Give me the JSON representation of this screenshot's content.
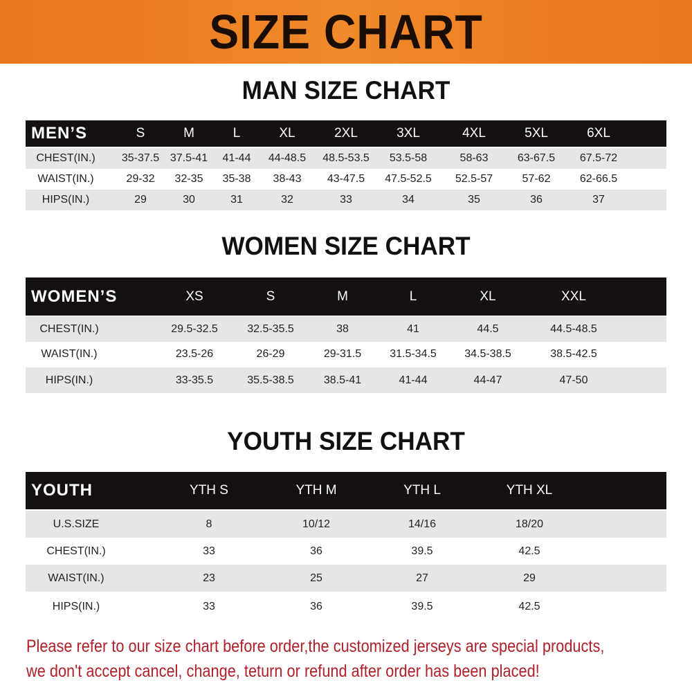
{
  "title": "SIZE CHART",
  "men": {
    "heading": "MAN SIZE CHART",
    "header": "MEN’S",
    "sizes": [
      "S",
      "M",
      "L",
      "XL",
      "2XL",
      "3XL",
      "4XL",
      "5XL",
      "6XL"
    ],
    "rows": [
      {
        "label": "CHEST(IN.)",
        "values": [
          "35-37.5",
          "37.5-41",
          "41-44",
          "44-48.5",
          "48.5-53.5",
          "53.5-58",
          "58-63",
          "63-67.5",
          "67.5-72"
        ]
      },
      {
        "label": "WAIST(IN.)",
        "values": [
          "29-32",
          "32-35",
          "35-38",
          "38-43",
          "43-47.5",
          "47.5-52.5",
          "52.5-57",
          "57-62",
          "62-66.5"
        ]
      },
      {
        "label": "HIPS(IN.)",
        "values": [
          "29",
          "30",
          "31",
          "32",
          "33",
          "34",
          "35",
          "36",
          "37"
        ]
      }
    ]
  },
  "women": {
    "heading": "WOMEN SIZE CHART",
    "header": "WOMEN’S",
    "sizes": [
      "XS",
      "S",
      "M",
      "L",
      "XL",
      "XXL"
    ],
    "rows": [
      {
        "label": "CHEST(IN.)",
        "values": [
          "29.5-32.5",
          "32.5-35.5",
          "38",
          "41",
          "44.5",
          "44.5-48.5"
        ]
      },
      {
        "label": "WAIST(IN.)",
        "values": [
          "23.5-26",
          "26-29",
          "29-31.5",
          "31.5-34.5",
          "34.5-38.5",
          "38.5-42.5"
        ]
      },
      {
        "label": "HIPS(IN.)",
        "values": [
          "33-35.5",
          "35.5-38.5",
          "38.5-41",
          "41-44",
          "44-47",
          "47-50"
        ]
      }
    ]
  },
  "youth": {
    "heading": "YOUTH SIZE CHART",
    "header": "YOUTH",
    "sizes": [
      "YTH S",
      "YTH M",
      "YTH L",
      "YTH XL"
    ],
    "rows": [
      {
        "label": "U.S.SIZE",
        "values": [
          "8",
          "10/12",
          "14/16",
          "18/20"
        ]
      },
      {
        "label": "CHEST(IN.)",
        "values": [
          "33",
          "36",
          "39.5",
          "42.5"
        ]
      },
      {
        "label": "WAIST(IN.)",
        "values": [
          "23",
          "25",
          "27",
          "29"
        ]
      },
      {
        "label": "HIPS(IN.)",
        "values": [
          "33",
          "36",
          "39.5",
          "42.5"
        ]
      }
    ]
  },
  "notice": {
    "line1": "Please refer to our size chart before order,the customized jerseys are special products,",
    "line2": "we don't accept cancel, change, teturn or refund after order has been placed!"
  },
  "colors": {
    "banner": "#f08a2a",
    "header_row": "#141010",
    "stripe": "#e6e6e6",
    "notice": "#b0202a"
  }
}
